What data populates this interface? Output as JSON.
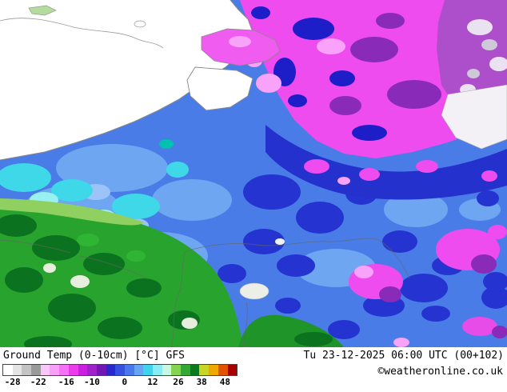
{
  "footer": {
    "title": "Ground Temp (0-10cm) [°C] GFS",
    "datetime": "Tu 23-12-2025 06:00 UTC (00+102)",
    "copyright": "©weatheronline.co.uk"
  },
  "legend": {
    "unit": "°C",
    "colors": [
      "#ffffff",
      "#e4e4e4",
      "#c4c4c4",
      "#9a9a9a",
      "#f8c8f8",
      "#f8a0f8",
      "#f472f4",
      "#ea3cea",
      "#cc1ee0",
      "#a020cc",
      "#7018b4",
      "#2828cc",
      "#3850e0",
      "#4878ec",
      "#68a4f4",
      "#40d4ec",
      "#88ecf4",
      "#c8f8e0",
      "#84d450",
      "#34a834",
      "#0c7a1c",
      "#cad422",
      "#f0a800",
      "#e25200",
      "#a80000"
    ],
    "ticks": [
      {
        "label": "-28",
        "pos": 4
      },
      {
        "label": "-22",
        "pos": 15
      },
      {
        "label": "-16",
        "pos": 27
      },
      {
        "label": "-10",
        "pos": 38
      },
      {
        "label": "0",
        "pos": 52
      },
      {
        "label": "12",
        "pos": 64
      },
      {
        "label": "26",
        "pos": 75
      },
      {
        "label": "38",
        "pos": 85
      },
      {
        "label": "48",
        "pos": 95
      }
    ]
  },
  "map": {
    "model": "GFS",
    "parameter": "Ground Temp (0-10cm)",
    "palette": {
      "sea": "#ffffff",
      "coast": "#888888",
      "severe_cold_magenta": "#ee4cee",
      "pink": "#f9a2f9",
      "purple": "#8a2ab8",
      "violet": "#ad4ecb",
      "dark_blue": "#2531cd",
      "blue": "#4a7ce8",
      "light_blue": "#6ea6f2",
      "cyan": "#3ed8e8",
      "light_cyan": "#98f0f0",
      "green": "#28a42e",
      "dark_green": "#0b7220",
      "yellow_green": "#90d060"
    }
  }
}
